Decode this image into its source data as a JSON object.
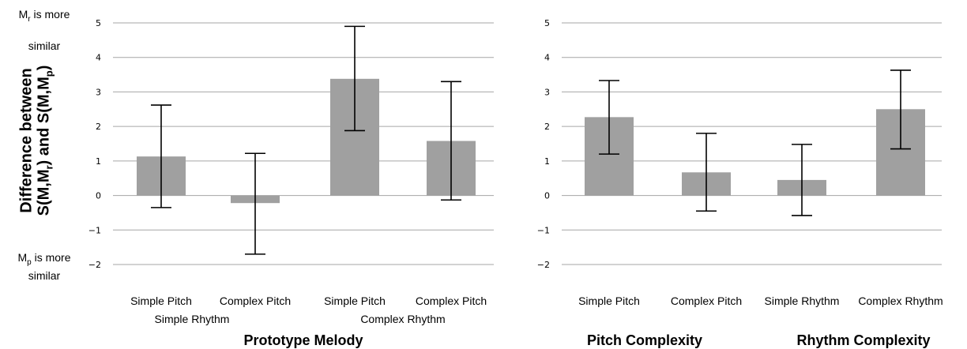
{
  "chart_data": [
    {
      "type": "bar",
      "categories": [
        "Simple Pitch",
        "Complex Pitch",
        "Simple Pitch",
        "Complex Pitch"
      ],
      "category_groups": [
        "Simple Rhythm",
        "Complex Rhythm"
      ],
      "values": [
        1.13,
        -0.22,
        3.38,
        1.58
      ],
      "error_low": [
        -0.35,
        -1.7,
        1.88,
        -0.13
      ],
      "error_high": [
        2.62,
        1.22,
        4.9,
        3.3
      ],
      "xlabel": "Prototype Melody",
      "ylabel_line1": "Difference between",
      "ylabel_line2": "S(M,M_r) and S(M,M_p)",
      "top_note": "M_r is more similar",
      "bottom_note": "M_p is more similar",
      "ylim": [
        -2,
        5
      ],
      "ticks": [
        "5",
        "4",
        "3",
        "2",
        "1",
        "0",
        "−1",
        "−2"
      ],
      "grid": true,
      "bar_color": "#a0a0a0"
    },
    {
      "type": "bar",
      "categories": [
        "Simple Pitch",
        "Complex Pitch",
        "Simple Rhythm",
        "Complex Rhythm"
      ],
      "category_groups": [
        "Pitch Complexity",
        "Rhythm Complexity"
      ],
      "values": [
        2.27,
        0.67,
        0.45,
        2.5
      ],
      "error_low": [
        1.2,
        -0.45,
        -0.58,
        1.35
      ],
      "error_high": [
        3.33,
        1.8,
        1.48,
        3.63
      ],
      "ylim": [
        -2,
        5
      ],
      "ticks": [
        "5",
        "4",
        "3",
        "2",
        "1",
        "0",
        "−1",
        "−2"
      ],
      "grid": true,
      "bar_color": "#a0a0a0"
    }
  ]
}
